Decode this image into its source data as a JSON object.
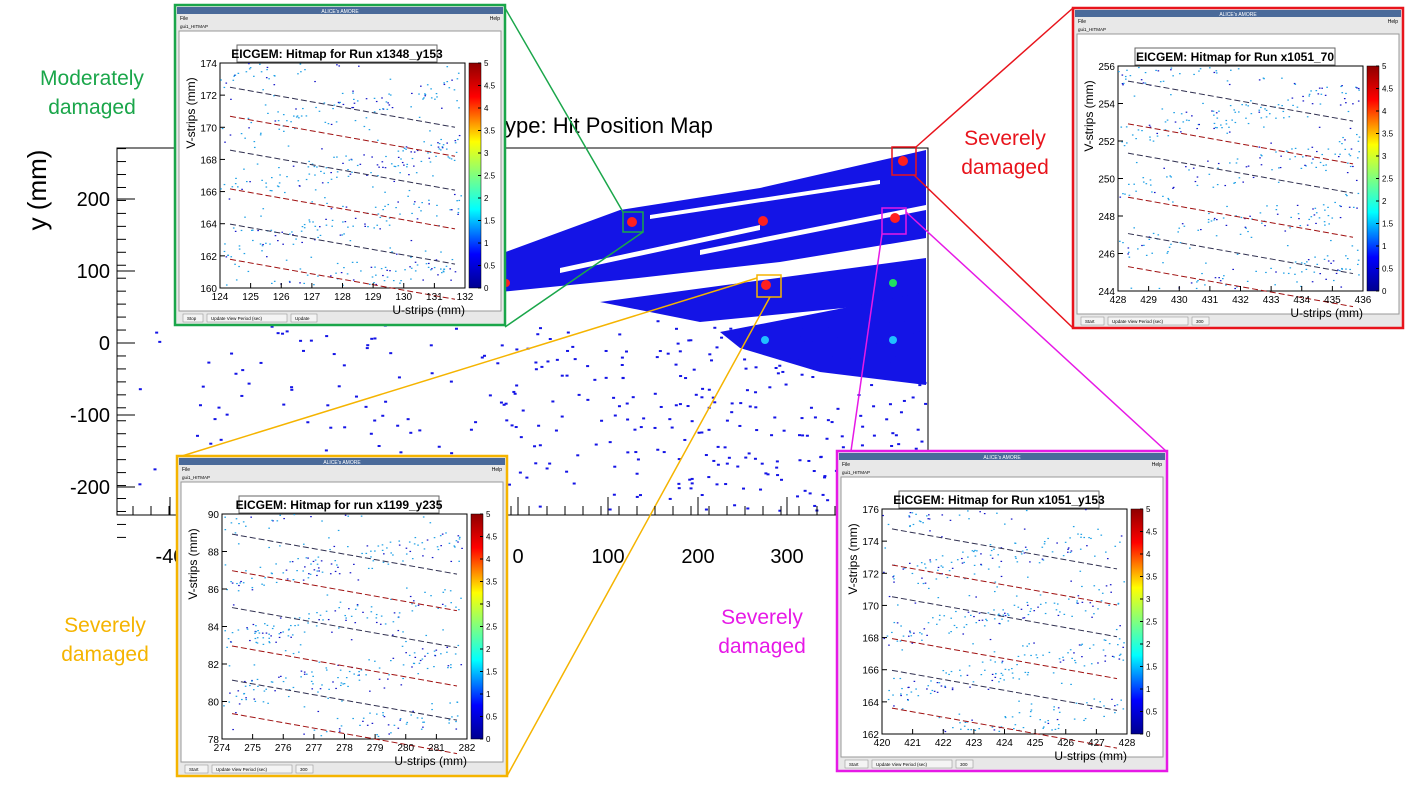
{
  "main_plot": {
    "title": "ype: Hit Position Map",
    "y_label": "y (mm)",
    "xticks": [
      "-40",
      0,
      100,
      200,
      300
    ],
    "yticks": [
      200,
      100,
      0,
      -100,
      -200
    ]
  },
  "annotations": [
    {
      "lines": [
        "Moderately",
        "damaged"
      ],
      "color": "#1aa64a"
    },
    {
      "lines": [
        "Severely",
        "damaged"
      ],
      "color": "#e8141c"
    },
    {
      "lines": [
        "Severely",
        "damaged"
      ],
      "color": "#f5b400"
    },
    {
      "lines": [
        "Severely",
        "damaged"
      ],
      "color": "#e619e6"
    }
  ],
  "insets": [
    {
      "color": "#1aa64a",
      "window_title": "ALICE's AMORE",
      "menu": [
        "File",
        "Help"
      ],
      "tab": "gui1_HITMAP",
      "title": "EICGEM: Hitmap for Run x1348_y153",
      "y_label": "V-strips (mm)",
      "x_label": "U-strips (mm)",
      "xticks": [
        124,
        125,
        126,
        127,
        128,
        129,
        130,
        131,
        132
      ],
      "yticks": [
        160,
        162,
        164,
        166,
        168,
        170,
        172,
        174
      ],
      "colorbar_ticks": [
        0,
        0.5,
        1,
        1.5,
        2,
        2.5,
        3,
        3.5,
        4,
        4.5,
        5
      ],
      "buttons": [
        "Stop",
        "Update View Period (sec)",
        "Update"
      ]
    },
    {
      "color": "#e8141c",
      "window_title": "ALICE's AMORE",
      "menu": [
        "File",
        "Help"
      ],
      "tab": "gui1_HITMAP",
      "title": "EICGEM: Hitmap for Run x1051_70",
      "y_label": "V-strips (mm)",
      "x_label": "U-strips (mm)",
      "xticks": [
        428,
        429,
        430,
        431,
        432,
        433,
        434,
        435,
        436
      ],
      "yticks": [
        244,
        246,
        248,
        250,
        252,
        254,
        256
      ],
      "colorbar_ticks": [
        0,
        0.5,
        1,
        1.5,
        2,
        2.5,
        3,
        3.5,
        4,
        4.5,
        5
      ],
      "buttons": [
        "Start",
        "Update View Period (sec)",
        "300"
      ]
    },
    {
      "color": "#f5b400",
      "window_title": "ALICE's AMORE",
      "menu": [
        "File",
        "Help"
      ],
      "tab": "gui1_HITMAP",
      "title": "EICGEM: Hitmap for run x1199_y235",
      "y_label": "V-strips (mm)",
      "x_label": "U-strips (mm)",
      "xticks": [
        274,
        275,
        276,
        277,
        278,
        279,
        280,
        281,
        282
      ],
      "yticks": [
        78,
        80,
        82,
        84,
        86,
        88,
        90
      ],
      "colorbar_ticks": [
        0,
        0.5,
        1,
        1.5,
        2,
        2.5,
        3,
        3.5,
        4,
        4.5,
        5
      ],
      "buttons": [
        "Start",
        "Update View Period (sec)",
        "300"
      ]
    },
    {
      "color": "#e619e6",
      "window_title": "ALICE's AMORE",
      "menu": [
        "File",
        "Help"
      ],
      "tab": "gui1_HITMAP",
      "title": "EICGEM: Hitmap for Run x1051_y153",
      "y_label": "V-strips (mm)",
      "x_label": "U-strips (mm)",
      "xticks": [
        420,
        421,
        422,
        423,
        424,
        425,
        426,
        427,
        428
      ],
      "yticks": [
        162,
        164,
        166,
        168,
        170,
        172,
        174,
        176
      ],
      "colorbar_ticks": [
        0,
        0.5,
        1,
        1.5,
        2,
        2.5,
        3,
        3.5,
        4,
        4.5,
        5
      ],
      "buttons": [
        "Start",
        "Update View Period (sec)",
        "300"
      ]
    }
  ]
}
